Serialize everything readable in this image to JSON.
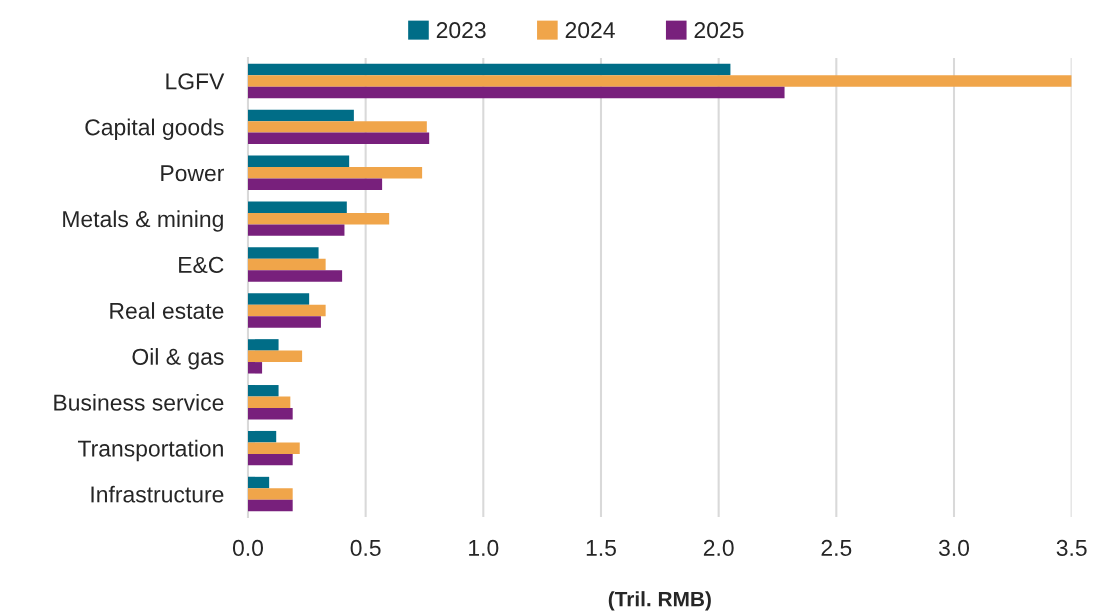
{
  "chart_data": {
    "type": "bar",
    "orientation": "horizontal",
    "categories": [
      "LGFV",
      "Capital goods",
      "Power",
      "Metals & mining",
      "E&C",
      "Real estate",
      "Oil & gas",
      "Business service",
      "Transportation",
      "Infrastructure"
    ],
    "series": [
      {
        "name": "2023",
        "color": "#006d87",
        "values": [
          2.05,
          0.45,
          0.43,
          0.42,
          0.3,
          0.26,
          0.13,
          0.13,
          0.12,
          0.09
        ]
      },
      {
        "name": "2024",
        "color": "#f0a54a",
        "values": [
          3.5,
          0.76,
          0.74,
          0.6,
          0.33,
          0.33,
          0.23,
          0.18,
          0.22,
          0.19
        ]
      },
      {
        "name": "2025",
        "color": "#78207c",
        "values": [
          2.28,
          0.77,
          0.57,
          0.41,
          0.4,
          0.31,
          0.06,
          0.19,
          0.19,
          0.19
        ]
      }
    ],
    "xlabel": "(Tril. RMB)",
    "xlim": [
      0,
      3.5
    ],
    "xticks": [
      {
        "value": 0,
        "label": "0.0"
      },
      {
        "value": 0.5,
        "label": "0.5"
      },
      {
        "value": 1,
        "label": "1.0"
      },
      {
        "value": 1.5,
        "label": "1.5"
      },
      {
        "value": 2,
        "label": "2.0"
      },
      {
        "value": 2.5,
        "label": "2.5"
      },
      {
        "value": 3,
        "label": "3.0"
      },
      {
        "value": 3.5,
        "label": "3.5"
      }
    ],
    "grid": "x",
    "legend": "top"
  }
}
